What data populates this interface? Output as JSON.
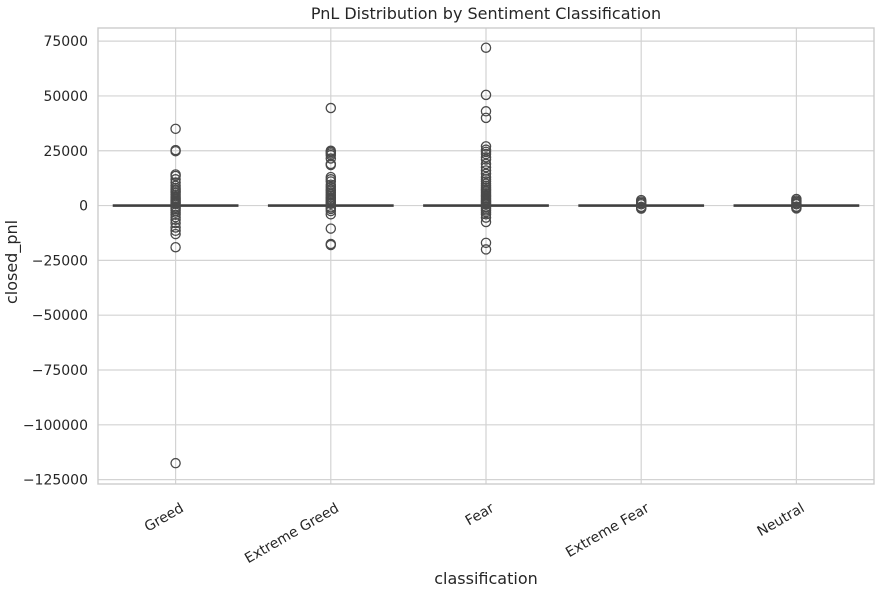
{
  "chart_data": {
    "type": "box",
    "title": "PnL Distribution by Sentiment Classification",
    "xlabel": "classification",
    "ylabel": "closed_pnl",
    "ylim": [
      -127000,
      81000
    ],
    "yticks": [
      75000,
      50000,
      25000,
      0,
      -25000,
      -50000,
      -75000,
      -100000,
      -125000
    ],
    "ytick_labels": [
      "75000",
      "50000",
      "25000",
      "0",
      "−25000",
      "−50000",
      "−75000",
      "−100000",
      "−125000"
    ],
    "grid": true,
    "categories": [
      "Greed",
      "Extreme Greed",
      "Fear",
      "Extreme Fear",
      "Neutral"
    ],
    "boxes": [
      {
        "category": "Greed",
        "q1": 0,
        "median": 0,
        "q3": 0,
        "whisker_low": 0,
        "whisker_high": 0,
        "outliers": [
          35000,
          25300,
          24800,
          14200,
          13500,
          12000,
          10500,
          9000,
          8000,
          7200,
          6500,
          5800,
          5000,
          4300,
          3600,
          3000,
          2400,
          1800,
          1300,
          800,
          -800,
          -1500,
          -2300,
          -3200,
          -4200,
          -5300,
          -6500,
          -8000,
          -10000,
          -11500,
          -13000,
          -19000,
          -117500
        ]
      },
      {
        "category": "Extreme Greed",
        "q1": 0,
        "median": 0,
        "q3": 0,
        "whisker_low": 0,
        "whisker_high": 0,
        "outliers": [
          44500,
          25000,
          24500,
          23800,
          23000,
          21500,
          19000,
          18500,
          13000,
          12000,
          11000,
          9500,
          8500,
          7500,
          6800,
          6000,
          5200,
          4500,
          3800,
          3100,
          2500,
          1900,
          1300,
          800,
          -800,
          -1500,
          -2500,
          -4000,
          -10500,
          -17500,
          -18000
        ]
      },
      {
        "category": "Fear",
        "q1": 0,
        "median": 0,
        "q3": 0,
        "whisker_low": 0,
        "whisker_high": 0,
        "outliers": [
          72000,
          50500,
          43000,
          40000,
          27000,
          25500,
          24500,
          23500,
          22000,
          21000,
          19000,
          17500,
          16000,
          14500,
          13000,
          12000,
          11000,
          10000,
          9000,
          8200,
          7400,
          6700,
          6000,
          5300,
          4600,
          4000,
          3400,
          2800,
          2200,
          1700,
          1200,
          700,
          -700,
          -1400,
          -2200,
          -3000,
          -4000,
          -5500,
          -7500,
          -17000,
          -20000
        ]
      },
      {
        "category": "Extreme Fear",
        "q1": 0,
        "median": 0,
        "q3": 0,
        "whisker_low": 0,
        "whisker_high": 0,
        "outliers": [
          2500,
          1800,
          1200,
          600,
          -600,
          -1000,
          -1400
        ]
      },
      {
        "category": "Neutral",
        "q1": 0,
        "median": 0,
        "q3": 0,
        "whisker_low": 0,
        "whisker_high": 0,
        "outliers": [
          3000,
          2300,
          1700,
          1100,
          600,
          -500,
          -900,
          -1300
        ]
      }
    ],
    "colors": {
      "line": "#3f3f3f",
      "marker_edge": "#4a4a4a",
      "grid": "#d3d3d3",
      "spine": "#cccccc",
      "text": "#262626",
      "background": "#ffffff"
    }
  }
}
